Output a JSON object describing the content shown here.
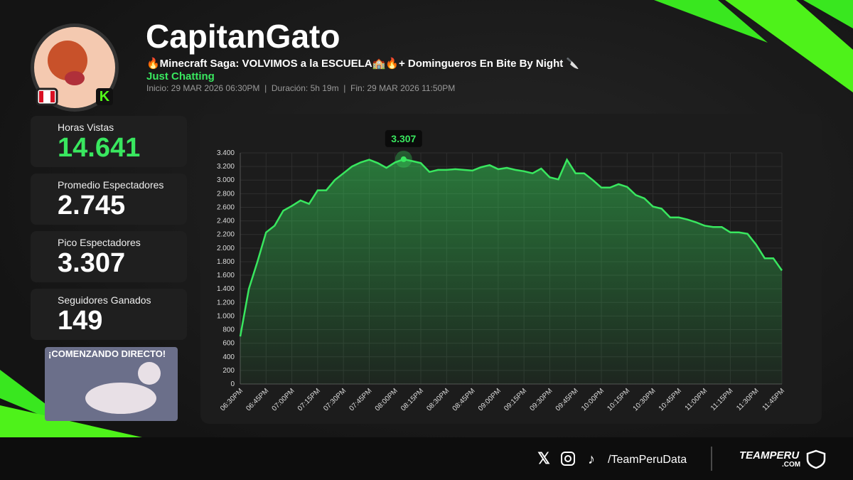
{
  "header": {
    "title": "CapitanGato",
    "subtitle": "🔥Minecraft Saga: VOLVIMOS a la ESCUELA🏫🔥+ Domingueros En Bite By Night 🔪",
    "category": "Just Chatting",
    "info": "Inicio: 29 MAR 2026 06:30PM  |  Duración: 5h 19m  |  Fin: 29 MAR 2026 11:50PM"
  },
  "stats": [
    {
      "label": "Horas Vistas",
      "value": "14.641"
    },
    {
      "label": "Promedio Espectadores",
      "value": "2.745"
    },
    {
      "label": "Pico Espectadores",
      "value": "3.307"
    },
    {
      "label": "Seguidores Ganados",
      "value": "149"
    }
  ],
  "thumbnail": {
    "caption": "¡COMENZANDO DIRECTO!"
  },
  "footer": {
    "handle": "/TeamPeruData",
    "brand": "TEAMPERU",
    "brand_sub": ".COM"
  },
  "chart_data": {
    "type": "line",
    "color": "#39e75f",
    "grid": true,
    "peak_label": "3.307",
    "categories": [
      "06:30PM",
      null,
      null,
      "06:45PM",
      null,
      null,
      "07:00PM",
      null,
      null,
      "07:15PM",
      null,
      null,
      "07:30PM",
      null,
      null,
      "07:45PM",
      null,
      null,
      "08:00PM",
      null,
      null,
      "08:15PM",
      null,
      null,
      "08:30PM",
      null,
      null,
      "08:45PM",
      null,
      null,
      "09:00PM",
      null,
      null,
      "09:15PM",
      null,
      null,
      "09:30PM",
      null,
      null,
      "09:45PM",
      null,
      null,
      "10:00PM",
      null,
      null,
      "10:15PM",
      null,
      null,
      "10:30PM",
      null,
      null,
      "10:45PM",
      null,
      null,
      "11:00PM",
      null,
      null,
      "11:15PM",
      null,
      null,
      "11:30PM",
      null,
      null,
      "11:45PM"
    ],
    "values": [
      700,
      1400,
      1800,
      2230,
      2330,
      2550,
      2620,
      2700,
      2650,
      2850,
      2850,
      3000,
      3100,
      3200,
      3260,
      3300,
      3250,
      3180,
      3260,
      3307,
      3280,
      3250,
      3120,
      3150,
      3150,
      3160,
      3150,
      3140,
      3190,
      3220,
      3160,
      3180,
      3150,
      3130,
      3100,
      3170,
      3040,
      3010,
      3300,
      3100,
      3100,
      3000,
      2890,
      2890,
      2940,
      2900,
      2780,
      2730,
      2610,
      2580,
      2450,
      2450,
      2420,
      2380,
      2330,
      2310,
      2310,
      2230,
      2230,
      2210,
      2050,
      1850,
      1850,
      1670
    ],
    "ylim": [
      0,
      3400
    ],
    "yticks": [
      0,
      200,
      400,
      600,
      800,
      {
        "value": 1000,
        "label": "1.000"
      },
      {
        "value": 1200,
        "label": "1.200"
      },
      {
        "value": 1400,
        "label": "1.400"
      },
      {
        "value": 1600,
        "label": "1.600"
      },
      {
        "value": 1800,
        "label": "1.800"
      },
      {
        "value": 2000,
        "label": "2.000"
      },
      {
        "value": 2200,
        "label": "2.200"
      },
      {
        "value": 2400,
        "label": "2.400"
      },
      {
        "value": 2600,
        "label": "2.600"
      },
      {
        "value": 2800,
        "label": "2.800"
      },
      {
        "value": 3000,
        "label": "3.000"
      },
      {
        "value": 3200,
        "label": "3.200"
      },
      {
        "value": 3400,
        "label": "3.400"
      }
    ]
  }
}
